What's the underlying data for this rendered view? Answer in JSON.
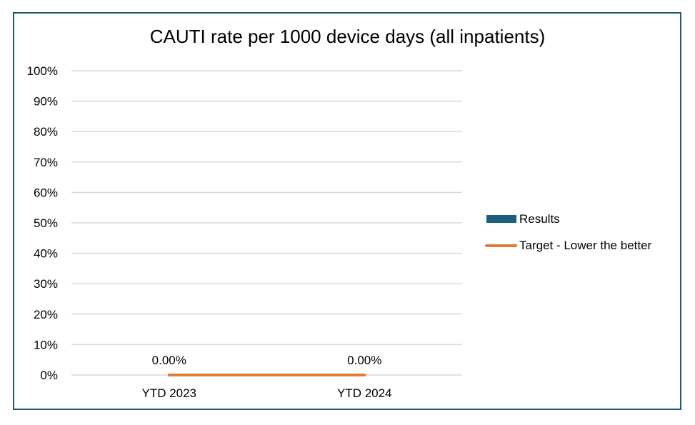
{
  "chart_data": {
    "type": "bar",
    "title": "CAUTI rate per 1000 device days (all inpatients)",
    "categories": [
      "YTD 2023",
      "YTD 2024"
    ],
    "series": [
      {
        "name": "Results",
        "type": "bar",
        "color": "#1b5e7e",
        "values": [
          0,
          0
        ],
        "data_labels": [
          "0.00%",
          "0.00%"
        ]
      },
      {
        "name": "Target - Lower the better",
        "type": "line",
        "color": "#e07b39",
        "values": [
          0,
          0
        ]
      }
    ],
    "yticks": [
      "0%",
      "10%",
      "20%",
      "30%",
      "40%",
      "50%",
      "60%",
      "70%",
      "80%",
      "90%",
      "100%"
    ],
    "ylim": [
      0,
      1
    ],
    "grid": true,
    "legend": "right"
  }
}
